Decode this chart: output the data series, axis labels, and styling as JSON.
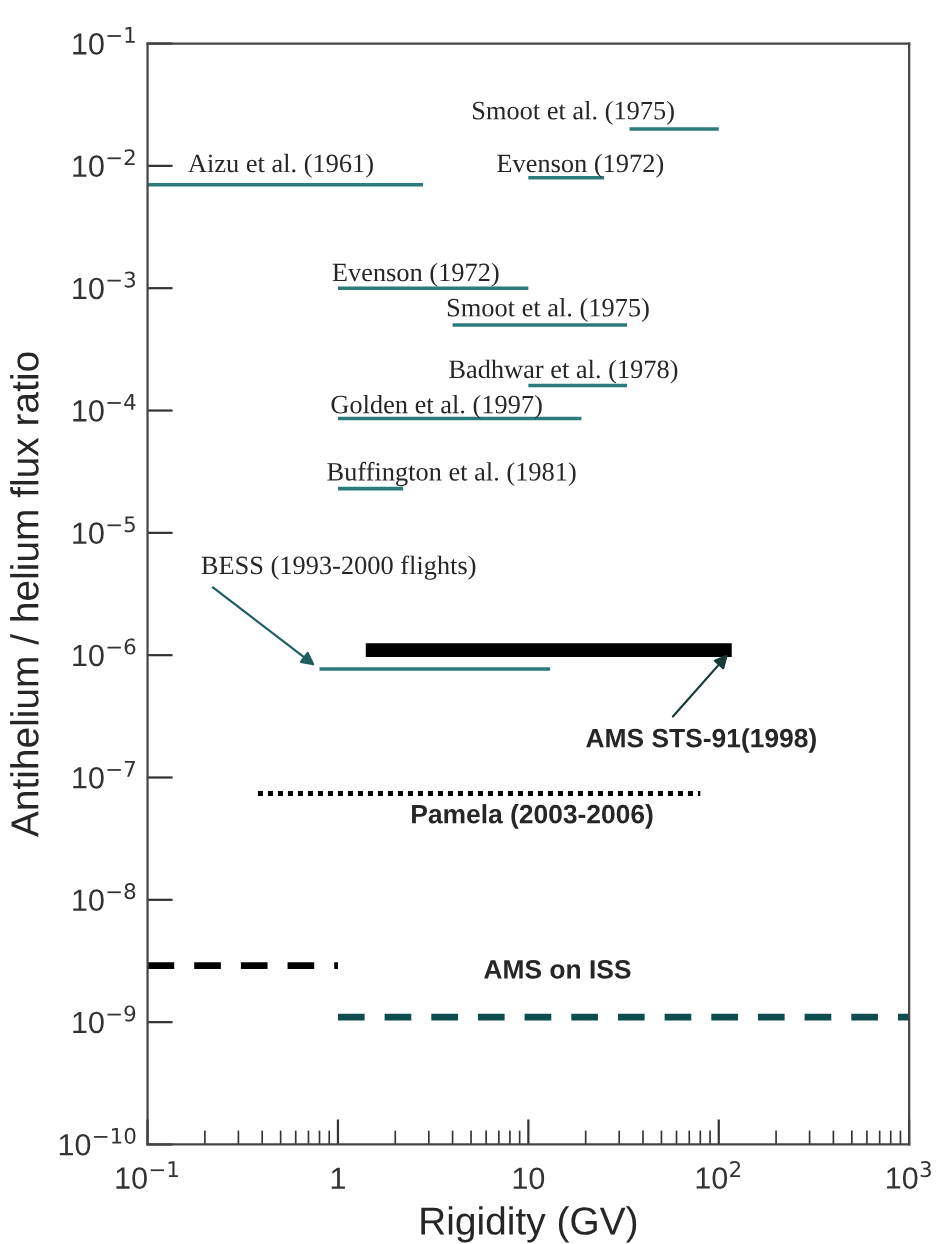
{
  "chart_data": {
    "type": "line",
    "xlabel": "Rigidity (GV)",
    "ylabel": "Antihelium / helium flux ratio",
    "log": "xy",
    "grid": false,
    "marker": "none",
    "xlim": [
      0.1,
      1000
    ],
    "ylim": [
      1e-10,
      0.1
    ],
    "xticks": [
      {
        "value": 0.1,
        "label": "10$^{−1}$"
      },
      1,
      10,
      {
        "value": 100,
        "label": "10$^{2}$"
      },
      {
        "value": 1000,
        "label": "10$^{3}$"
      }
    ],
    "yticks": [
      {
        "value": 1e-10,
        "label": "10$^{−10}$"
      },
      {
        "value": 1e-09,
        "label": "10$^{−9}$"
      },
      {
        "value": 1e-08,
        "label": "10$^{−8}$"
      },
      {
        "value": 1e-07,
        "label": "10$^{−7}$"
      },
      {
        "value": 1e-06,
        "label": "10$^{−6}$"
      },
      {
        "value": 1e-05,
        "label": "10$^{−5}$"
      },
      {
        "value": 0.0001,
        "label": "10$^{−4}$"
      },
      {
        "value": 0.001,
        "label": "10$^{−3}$"
      },
      {
        "value": 0.01,
        "label": "10$^{−2}$"
      },
      {
        "value": 0.1,
        "label": "10$^{−1}$"
      }
    ],
    "series": [
      {
        "color": "#2b7b7b",
        "line_style": "solid",
        "x": [
          34,
          100
        ],
        "values": [
          0.02,
          0.02
        ]
      },
      {
        "color": "#2b7b7b",
        "line_style": "solid",
        "x": [
          10,
          25
        ],
        "values": [
          0.008,
          0.008
        ]
      },
      {
        "color": "#2b7b7b",
        "line_style": "solid",
        "x": [
          0.1,
          2.8
        ],
        "values": [
          0.007,
          0.007
        ]
      },
      {
        "color": "#2b7b7b",
        "line_style": "solid",
        "x": [
          1,
          10
        ],
        "values": [
          0.001,
          0.001
        ]
      },
      {
        "color": "#2b7b7b",
        "line_style": "solid",
        "x": [
          4,
          33
        ],
        "values": [
          0.0005,
          0.0005
        ]
      },
      {
        "color": "#2b7b7b",
        "line_style": "solid",
        "x": [
          10,
          33
        ],
        "values": [
          0.00016,
          0.00016
        ]
      },
      {
        "color": "#2b7b7b",
        "line_style": "solid",
        "x": [
          1,
          19
        ],
        "values": [
          8.6e-05,
          8.6e-05
        ]
      },
      {
        "color": "#2b7b7b",
        "line_style": "solid",
        "x": [
          1,
          2.2
        ],
        "values": [
          2.3e-05,
          2.3e-05
        ]
      },
      {
        "color": "#2b7b7b",
        "line_style": "solid",
        "x": [
          0.8,
          13
        ],
        "values": [
          7.7e-07,
          7.7e-07
        ]
      },
      {
        "color": "#000000",
        "line_style": "solid",
        "x": [
          1.4,
          117
        ],
        "values": [
          1.1e-06,
          1.1e-06
        ]
      },
      {
        "color": "#000000",
        "line_style": "dotted",
        "x": [
          0.38,
          80
        ],
        "values": [
          7.4e-08,
          7.4e-08
        ]
      },
      {
        "color": "#000000",
        "line_style": "dashed",
        "x": [
          0.1,
          1
        ],
        "values": [
          2.9e-09,
          2.9e-09
        ]
      },
      {
        "color": "#0d4d4d",
        "line_style": "dashed",
        "x": [
          1,
          1000
        ],
        "values": [
          1.1e-09,
          1.1e-09
        ]
      }
    ],
    "annotations": [
      "Smoot et al. (1975)",
      "Aizu et al. (1961)",
      "Evenson (1972)",
      "Evenson (1972)",
      "Smoot et al. (1975)",
      "Badhwar et al. (1978)",
      "Golden et al. (1997)",
      "Buffington et al. (1981)",
      {
        "text": "BESS (1993-2000 flights)",
        "x": 0.8,
        "y": 7.7e-07
      },
      {
        "text": "AMS STS-91(1998)",
        "x": 117,
        "y": 1.1e-06
      },
      "Pamela (2003-2006)",
      "AMS on ISS"
    ]
  }
}
